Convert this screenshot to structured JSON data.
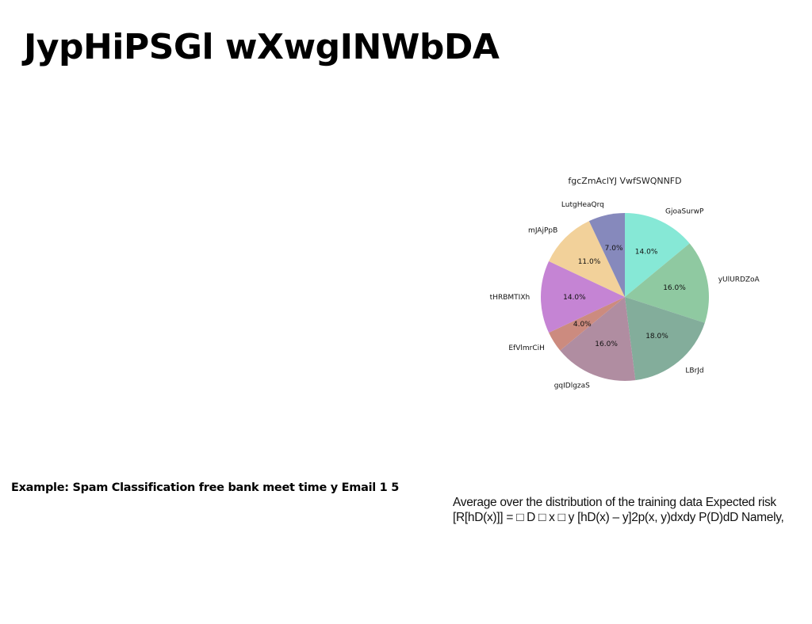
{
  "slide": {
    "title": "JypHiPSGl wXwgINWbDA"
  },
  "example": {
    "heading": "Example: Spam Classification free bank meet time y Email 1 5"
  },
  "risk": {
    "line1": "Average over the distribution of the training data Expected risk",
    "line2": "[R[hD(x)]] = □ D □ x □ y [hD(x) – y]2p(x, y)dxdy P(D)dD Namely,"
  },
  "chart_data": {
    "type": "pie",
    "title": "fgcZmAclYJ VwfSWQNNFD",
    "start_angle_deg": 90,
    "direction": "clockwise",
    "slices": [
      {
        "label": "GjoaSurwP",
        "value": 14.0,
        "pct_label": "14.0%",
        "color": "#86e8d6"
      },
      {
        "label": "yUlURDZoA",
        "value": 16.0,
        "pct_label": "16.0%",
        "color": "#8fc9a1"
      },
      {
        "label": "LBrJd",
        "value": 18.0,
        "pct_label": "18.0%",
        "color": "#83ad9b"
      },
      {
        "label": "gqIDlgzaS",
        "value": 16.0,
        "pct_label": "16.0%",
        "color": "#b08da1"
      },
      {
        "label": "EfVlmrCiH",
        "value": 4.0,
        "pct_label": "4.0%",
        "color": "#cc8b7f"
      },
      {
        "label": "tHRBMTIXh",
        "value": 14.0,
        "pct_label": "14.0%",
        "color": "#c584d4"
      },
      {
        "label": "mJAjPpB",
        "value": 11.0,
        "pct_label": "11.0%",
        "color": "#f2d19a"
      },
      {
        "label": "LutgHeaQrq",
        "value": 7.0,
        "pct_label": "7.0%",
        "color": "#8689bc"
      }
    ]
  }
}
